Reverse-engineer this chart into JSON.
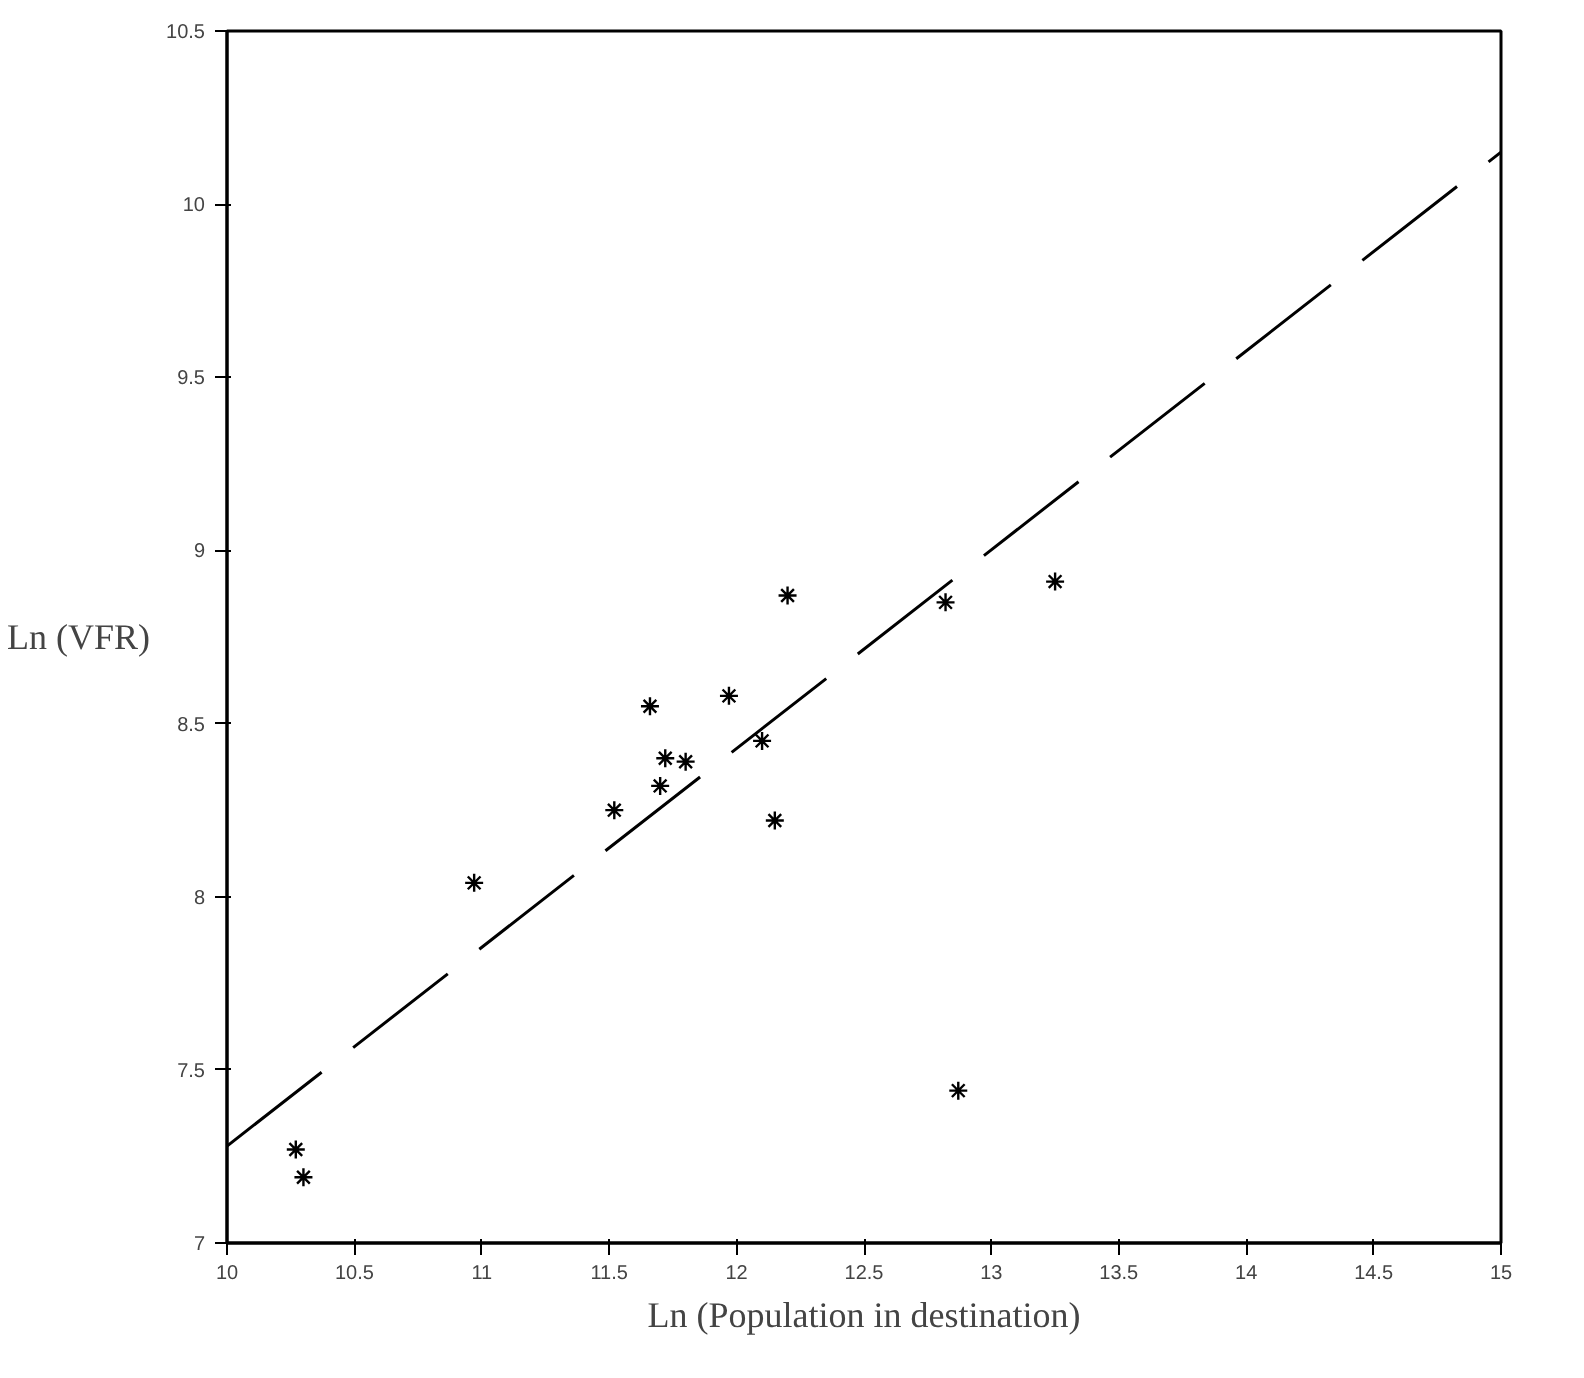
{
  "chart_data": {
    "type": "scatter",
    "xlabel": "Ln (Population in destination)",
    "ylabel": "Ln (VFR)",
    "xlim": [
      10,
      15
    ],
    "ylim": [
      7,
      10.5
    ],
    "xticks": [
      10,
      10.5,
      11,
      11.5,
      12,
      12.5,
      13,
      13.5,
      14,
      14.5,
      15
    ],
    "yticks": [
      7,
      7.5,
      8,
      8.5,
      9,
      9.5,
      10,
      10.5
    ],
    "grid": false,
    "series": [
      {
        "marker": "cross",
        "color": "#000000",
        "x": [
          10.27,
          10.3,
          10.97,
          11.52,
          11.66,
          11.7,
          11.72,
          11.8,
          11.97,
          12.1,
          12.15,
          12.2,
          12.82,
          13.25,
          12.87
        ],
        "values": [
          7.27,
          7.19,
          8.04,
          8.25,
          8.55,
          8.32,
          8.4,
          8.39,
          8.58,
          8.45,
          8.22,
          8.87,
          8.85,
          8.91,
          7.44
        ]
      },
      {
        "type": "line",
        "marker": "none",
        "color": "#000000",
        "line_style": "dashed",
        "x": [
          10,
          15
        ],
        "values": [
          7.28,
          10.15
        ]
      }
    ]
  }
}
